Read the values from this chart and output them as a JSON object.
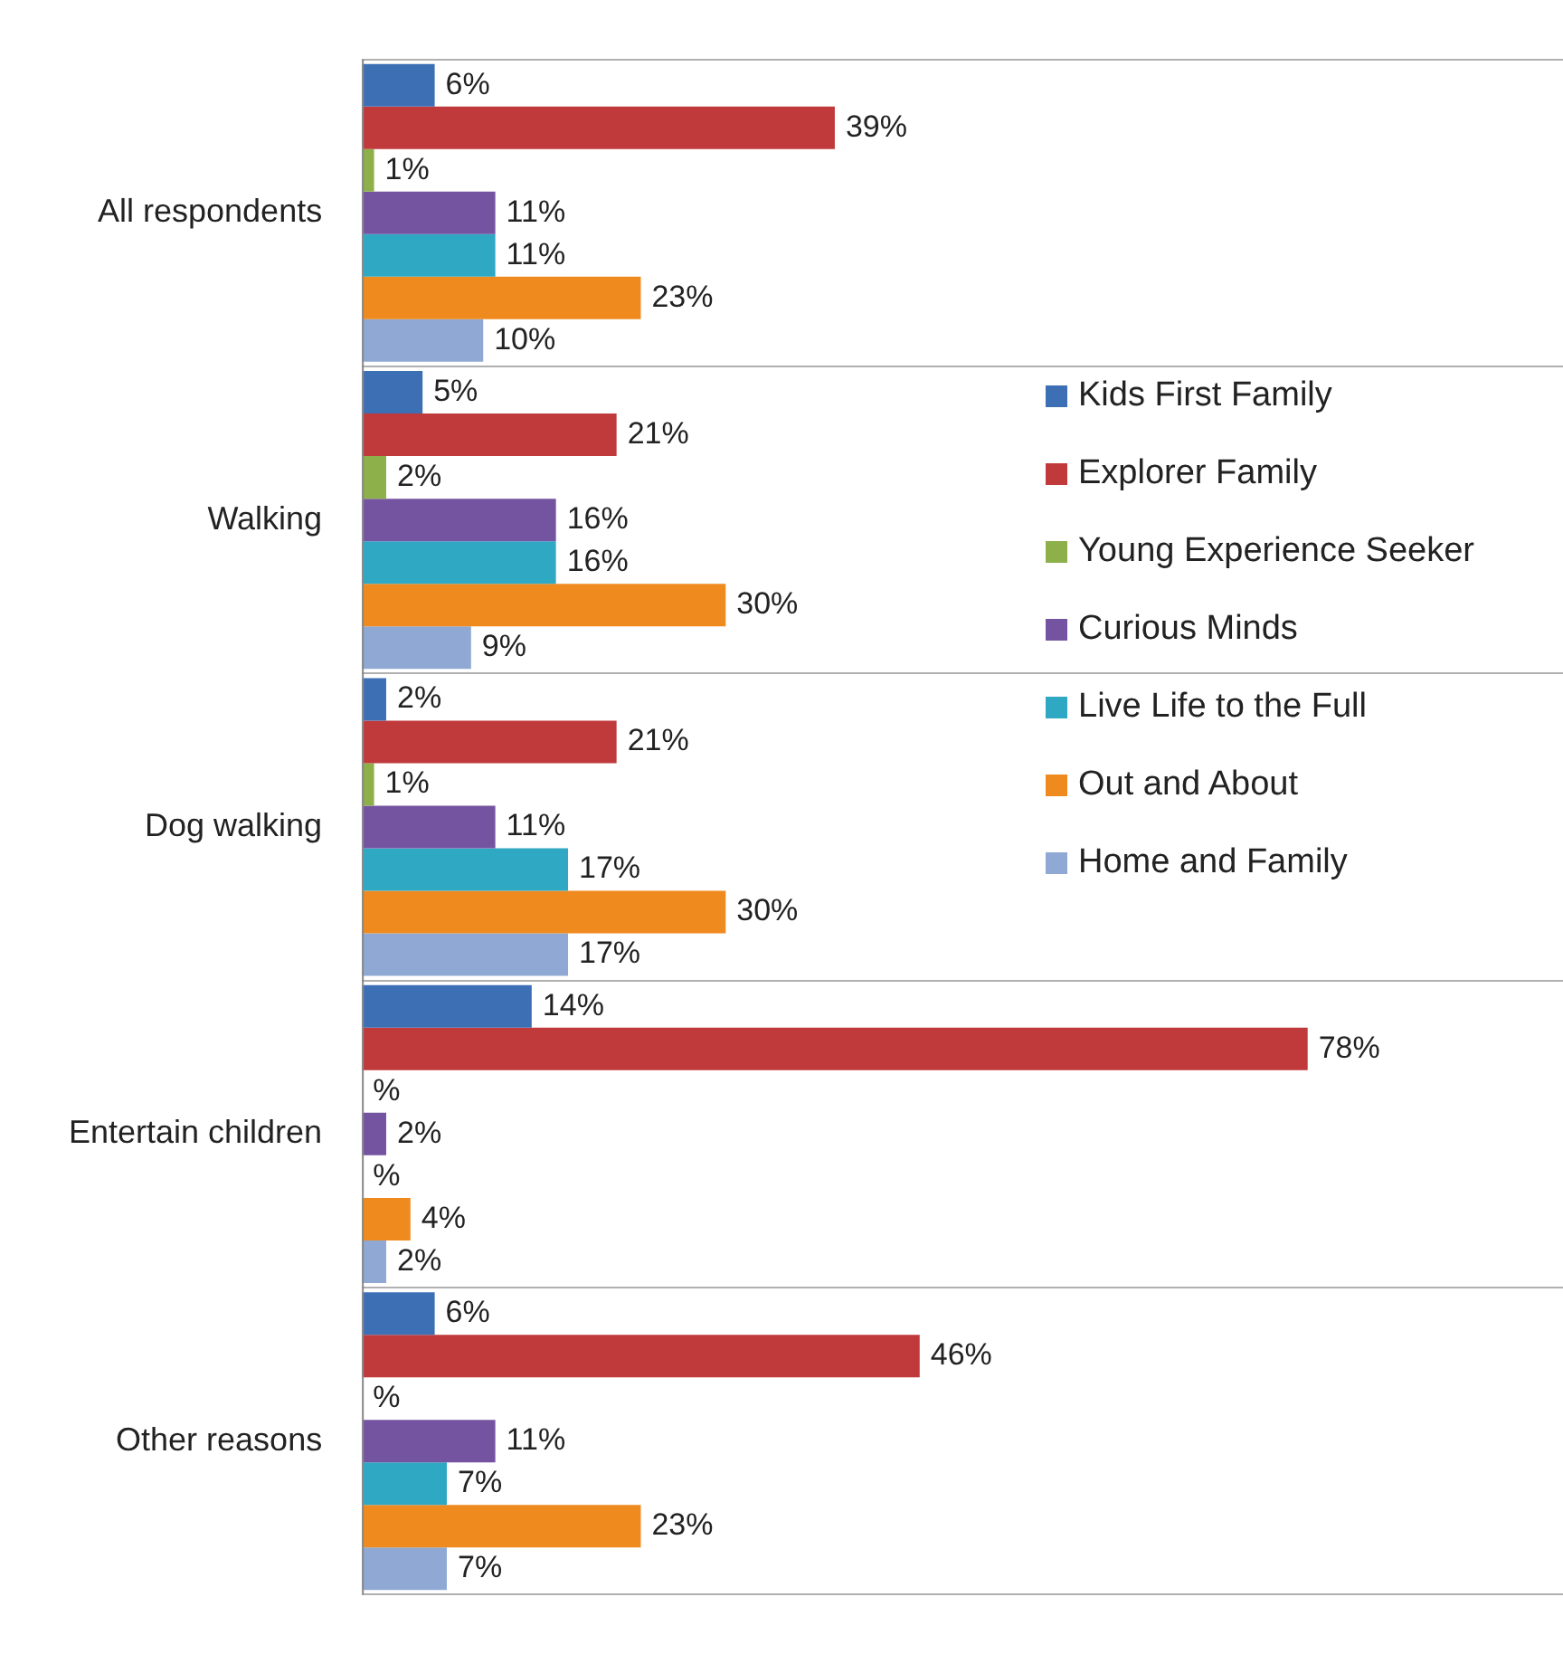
{
  "chart_data": {
    "type": "bar",
    "orientation": "horizontal",
    "grid": "y",
    "legend": "right",
    "categories": [
      "All respondents",
      "Walking",
      "Dog walking",
      "Entertain children",
      "Other reasons"
    ],
    "series": [
      {
        "name": "Kids First Family",
        "color": "#3d6fb5",
        "values": [
          6,
          5,
          2,
          14,
          6
        ],
        "value_labels": [
          "6%",
          "5%",
          "2%",
          "14%",
          "6%"
        ]
      },
      {
        "name": "Explorer Family",
        "color": "#c0393b",
        "values": [
          39,
          21,
          21,
          78,
          46
        ],
        "value_labels": [
          "39%",
          "21%",
          "21%",
          "78%",
          "46%"
        ]
      },
      {
        "name": "Young Experience Seeker",
        "color": "#8db04a",
        "values": [
          1,
          2,
          1,
          null,
          null
        ],
        "value_labels": [
          "1%",
          "2%",
          "1%",
          "%",
          "%"
        ]
      },
      {
        "name": "Curious Minds",
        "color": "#7454a0",
        "values": [
          11,
          16,
          11,
          2,
          11
        ],
        "value_labels": [
          "11%",
          "16%",
          "11%",
          "2%",
          "11%"
        ]
      },
      {
        "name": "Live Life to the Full",
        "color": "#2fa8c4",
        "values": [
          11,
          16,
          17,
          null,
          7
        ],
        "value_labels": [
          "11%",
          "16%",
          "17%",
          "%",
          "7%"
        ]
      },
      {
        "name": "Out and About",
        "color": "#ef8a1f",
        "values": [
          23,
          30,
          30,
          4,
          23
        ],
        "value_labels": [
          "23%",
          "30%",
          "30%",
          "4%",
          "23%"
        ]
      },
      {
        "name": "Home and Family",
        "color": "#8fa9d4",
        "values": [
          10,
          9,
          17,
          2,
          7
        ],
        "value_labels": [
          "10%",
          "9%",
          "17%",
          "2%",
          "7%"
        ]
      }
    ]
  }
}
